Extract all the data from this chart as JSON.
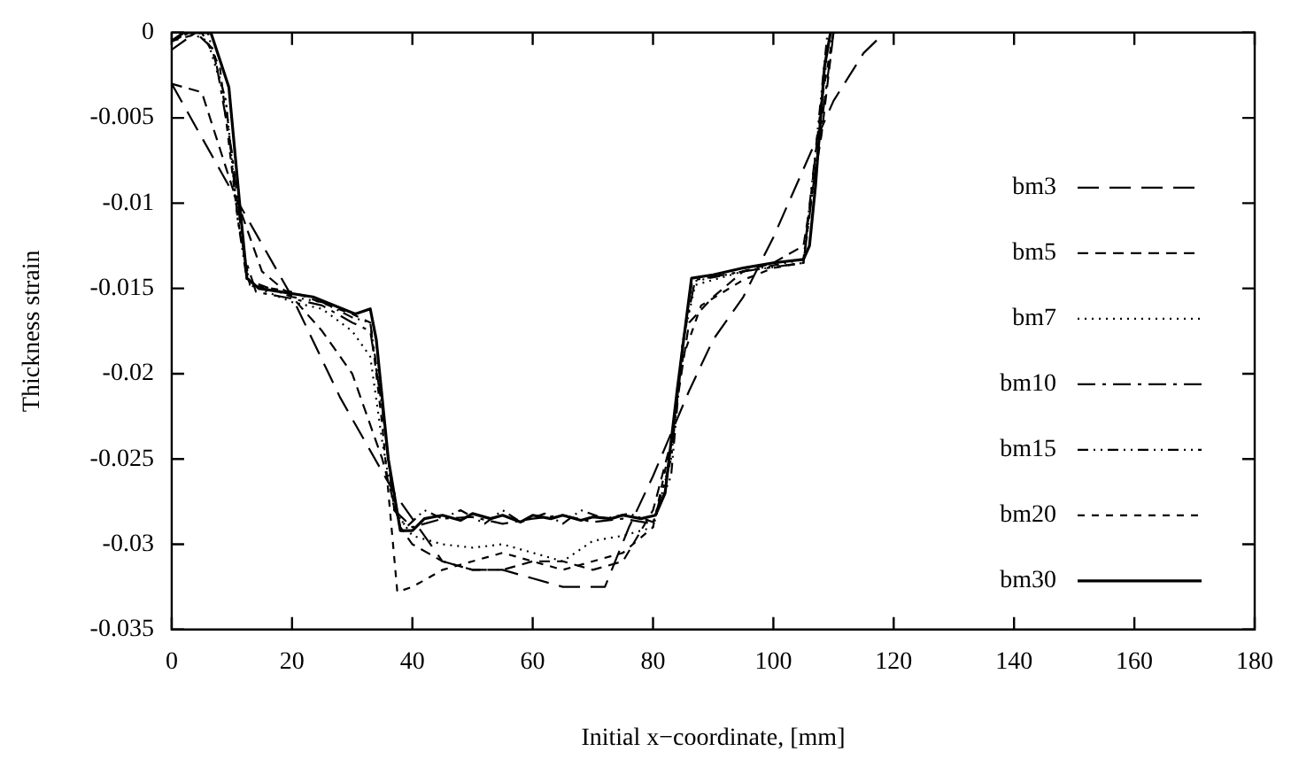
{
  "chart_data": {
    "type": "line",
    "xlabel": "Initial x−coordinate, [mm]",
    "ylabel": "Thickness strain",
    "xlim": [
      0,
      180
    ],
    "xticks": [
      0,
      20,
      40,
      60,
      80,
      100,
      120,
      140,
      160,
      180
    ],
    "ylim": [
      -0.035,
      0
    ],
    "yticks": [
      -0.035,
      -0.03,
      -0.025,
      -0.02,
      -0.015,
      -0.01,
      -0.005,
      0
    ],
    "grid": false,
    "legend": "right",
    "marker": "none",
    "series": [
      {
        "name": "bm3",
        "color": "#000000",
        "line_style": "dashed",
        "x": [
          0,
          10,
          20,
          28,
          37,
          40,
          45,
          50,
          55,
          60,
          65,
          72,
          76,
          80,
          83,
          86,
          90,
          95,
          100,
          105,
          110,
          115,
          118.5
        ],
        "values": [
          -0.003,
          -0.0093,
          -0.0155,
          -0.0214,
          -0.027,
          -0.0285,
          -0.031,
          -0.0315,
          -0.0315,
          -0.032,
          -0.0325,
          -0.0325,
          -0.029,
          -0.026,
          -0.0235,
          -0.021,
          -0.018,
          -0.0155,
          -0.012,
          -0.008,
          -0.004,
          -0.0012,
          0
        ]
      },
      {
        "name": "bm5",
        "color": "#000000",
        "line_style": "dashed",
        "x": [
          0,
          5,
          10,
          15,
          20,
          25,
          30,
          35,
          38,
          40,
          45,
          50,
          55,
          60,
          65,
          70,
          75,
          80,
          83,
          86,
          90,
          95,
          100,
          105,
          108,
          110
        ],
        "values": [
          -0.003,
          -0.0035,
          -0.009,
          -0.014,
          -0.0155,
          -0.0175,
          -0.02,
          -0.025,
          -0.029,
          -0.03,
          -0.031,
          -0.0315,
          -0.0315,
          -0.031,
          -0.031,
          -0.0315,
          -0.031,
          -0.028,
          -0.024,
          -0.017,
          -0.0155,
          -0.014,
          -0.0135,
          -0.0125,
          -0.006,
          0
        ]
      },
      {
        "name": "bm7",
        "color": "#000000",
        "line_style": "dotted",
        "x": [
          0,
          3,
          6,
          9,
          11,
          13,
          20,
          25,
          30,
          33,
          35,
          37,
          40,
          45,
          50,
          55,
          60,
          65,
          70,
          75,
          80,
          83,
          85,
          87,
          95,
          105,
          107,
          109,
          110
        ],
        "values": [
          -0.0005,
          0,
          -0.0005,
          -0.004,
          -0.011,
          -0.0148,
          -0.0158,
          -0.0162,
          -0.0175,
          -0.019,
          -0.024,
          -0.028,
          -0.0295,
          -0.03,
          -0.0302,
          -0.03,
          -0.0305,
          -0.031,
          -0.0298,
          -0.0295,
          -0.029,
          -0.025,
          -0.018,
          -0.0148,
          -0.014,
          -0.0135,
          -0.008,
          -0.001,
          0
        ]
      },
      {
        "name": "bm10",
        "color": "#000000",
        "line_style": "dashed",
        "x": [
          0,
          4,
          7,
          10,
          12,
          14,
          20,
          25,
          30,
          33,
          35,
          37,
          40,
          45,
          50,
          55,
          60,
          65,
          70,
          75,
          80,
          83,
          85,
          87,
          95,
          105,
          107,
          110
        ],
        "values": [
          -0.001,
          0,
          -0.001,
          -0.007,
          -0.013,
          -0.0152,
          -0.0156,
          -0.016,
          -0.017,
          -0.0175,
          -0.022,
          -0.028,
          -0.029,
          -0.0285,
          -0.0284,
          -0.0288,
          -0.0285,
          -0.0283,
          -0.0287,
          -0.0285,
          -0.0288,
          -0.025,
          -0.018,
          -0.0145,
          -0.014,
          -0.0135,
          -0.008,
          0
        ]
      },
      {
        "name": "bm15",
        "color": "#000000",
        "line_style": "dashed",
        "x": [
          0,
          3,
          6,
          9,
          11,
          12.5,
          20,
          25,
          30,
          33,
          35,
          37,
          39,
          42,
          45,
          48,
          52,
          55,
          58,
          62,
          65,
          68,
          72,
          76,
          80,
          83,
          85,
          86.5,
          95,
          105,
          107,
          109
        ],
        "values": [
          -0.0005,
          0,
          0,
          -0.004,
          -0.011,
          -0.0145,
          -0.0155,
          -0.0158,
          -0.0167,
          -0.017,
          -0.022,
          -0.028,
          -0.029,
          -0.028,
          -0.0285,
          -0.028,
          -0.0288,
          -0.028,
          -0.0287,
          -0.0282,
          -0.0288,
          -0.028,
          -0.0285,
          -0.0282,
          -0.0287,
          -0.026,
          -0.018,
          -0.0146,
          -0.014,
          -0.0133,
          -0.007,
          0
        ]
      },
      {
        "name": "bm20",
        "color": "#000000",
        "line_style": "dashed",
        "x": [
          0,
          5,
          8,
          11,
          13,
          20,
          30,
          33,
          35,
          37.5,
          40,
          45,
          50,
          55,
          60,
          65,
          70,
          75,
          80,
          83,
          85,
          88,
          95,
          100,
          105,
          108,
          110
        ],
        "values": [
          -0.0005,
          0,
          -0.002,
          -0.011,
          -0.0148,
          -0.0152,
          -0.0165,
          -0.017,
          -0.023,
          -0.0328,
          -0.0325,
          -0.0315,
          -0.031,
          -0.0305,
          -0.031,
          -0.0315,
          -0.031,
          -0.0305,
          -0.029,
          -0.024,
          -0.019,
          -0.016,
          -0.0145,
          -0.0138,
          -0.0135,
          -0.004,
          0
        ]
      },
      {
        "name": "bm30",
        "color": "#000000",
        "line_style": "solid",
        "x": [
          0,
          2,
          6.5,
          9.5,
          11.5,
          12.5,
          14.5,
          23.5,
          30.5,
          33,
          34,
          36,
          38,
          40,
          42,
          45,
          48,
          50,
          53,
          55,
          58,
          60,
          63,
          65,
          68,
          70,
          73,
          75,
          78,
          80.4,
          82,
          84,
          86.4,
          90,
          95,
          100,
          105,
          106,
          107,
          108.5,
          109.5
        ],
        "values": [
          -0.0005,
          0,
          0,
          -0.0032,
          -0.0108,
          -0.0144,
          -0.015,
          -0.0155,
          -0.0165,
          -0.0162,
          -0.018,
          -0.025,
          -0.0292,
          -0.0292,
          -0.0285,
          -0.0283,
          -0.0286,
          -0.0282,
          -0.0285,
          -0.0283,
          -0.0287,
          -0.0283,
          -0.0285,
          -0.0283,
          -0.0286,
          -0.0284,
          -0.0285,
          -0.0283,
          -0.0285,
          -0.0283,
          -0.027,
          -0.021,
          -0.0144,
          -0.0142,
          -0.0138,
          -0.0135,
          -0.0133,
          -0.0125,
          -0.009,
          -0.002,
          0
        ]
      }
    ]
  }
}
